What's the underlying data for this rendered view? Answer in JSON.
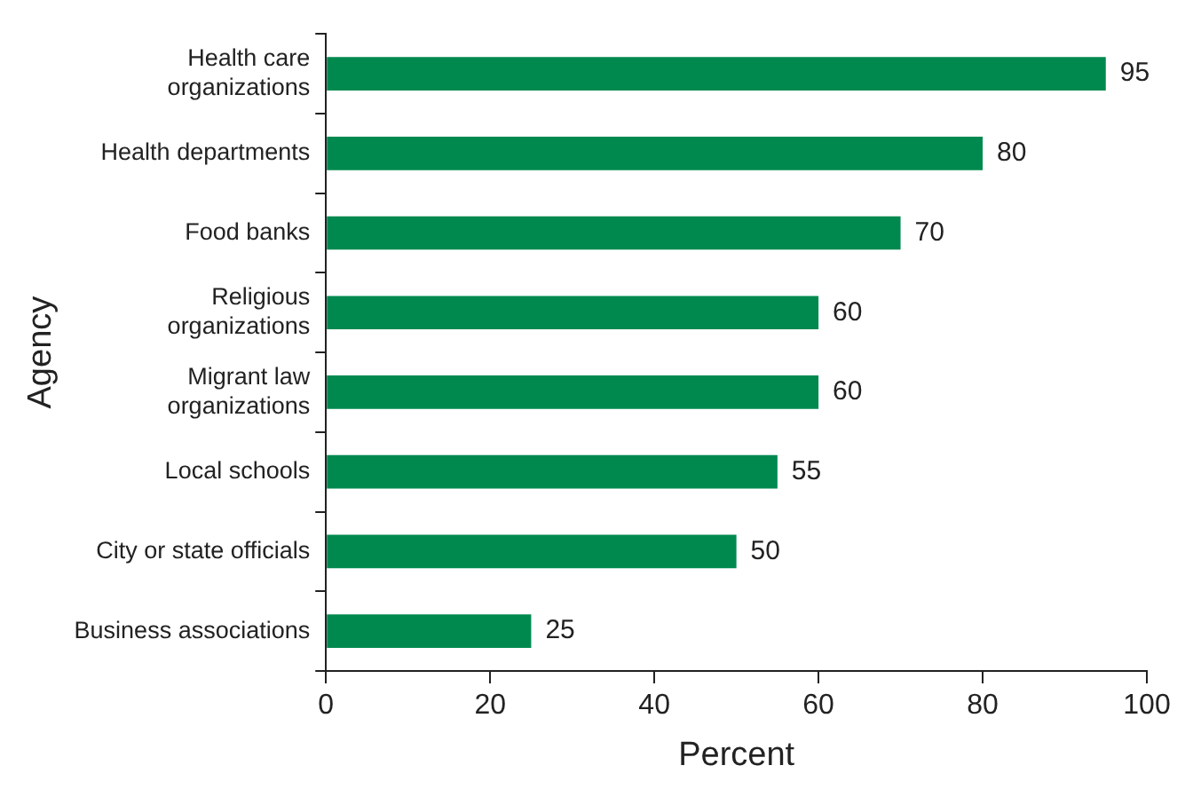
{
  "chart_data": {
    "type": "bar",
    "orientation": "horizontal",
    "xlabel": "Percent",
    "ylabel": "Agency",
    "categories": [
      "Health care\norganizations",
      "Health departments",
      "Food banks",
      "Religious\norganizations",
      "Migrant law\norganizations",
      "Local schools",
      "City or state officials",
      "Business associations"
    ],
    "values": [
      95,
      80,
      70,
      60,
      60,
      55,
      50,
      25
    ],
    "color": "#00894f",
    "data_labels": true,
    "xlim": [
      0,
      100
    ],
    "xticks": [
      0,
      20,
      40,
      60,
      80,
      100
    ],
    "grid": false,
    "legend": false
  }
}
